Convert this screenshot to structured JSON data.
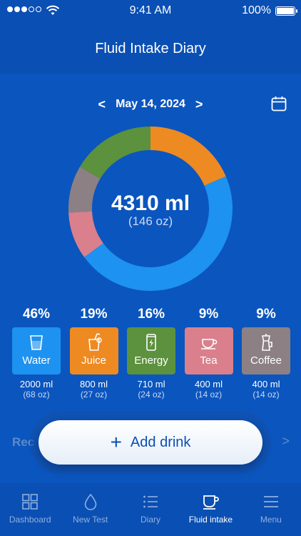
{
  "status": {
    "time": "9:41 AM",
    "battery": "100%"
  },
  "header": {
    "title": "Fluid Intake Diary"
  },
  "date": {
    "label": "May 14, 2024",
    "prev": "<",
    "next": ">"
  },
  "summary": {
    "total": "4310 ml",
    "total_oz": "(146 oz)"
  },
  "chart_data": {
    "type": "pie",
    "title": "",
    "labels": [
      "Water",
      "Juice",
      "Energy",
      "Tea",
      "Coffee"
    ],
    "values": [
      2000,
      800,
      710,
      400,
      400
    ],
    "colors": [
      "#1D92F0",
      "#EE8A22",
      "#5C913D",
      "#D9808C",
      "#8C8084"
    ]
  },
  "categories": [
    {
      "pct": "46%",
      "label": "Water",
      "ml": "2000 ml",
      "oz": "(68 oz)",
      "color": "#1D92F0",
      "icon": "glass-icon"
    },
    {
      "pct": "19%",
      "label": "Juice",
      "ml": "800 ml",
      "oz": "(27 oz)",
      "color": "#EE8A22",
      "icon": "juice-icon"
    },
    {
      "pct": "16%",
      "label": "Energy",
      "ml": "710 ml",
      "oz": "(24 oz)",
      "color": "#5C913D",
      "icon": "energy-can-icon"
    },
    {
      "pct": "9%",
      "label": "Tea",
      "ml": "400 ml",
      "oz": "(14 oz)",
      "color": "#D9808C",
      "icon": "teacup-icon"
    },
    {
      "pct": "9%",
      "label": "Coffee",
      "ml": "400 ml",
      "oz": "(14 oz)",
      "color": "#8C8084",
      "icon": "coffee-pot-icon"
    }
  ],
  "recent": {
    "label": "Rec",
    "arrow": ">"
  },
  "add_button": {
    "plus": "+",
    "label": "Add drink"
  },
  "tabs": [
    {
      "label": "Dashboard",
      "icon": "grid-icon"
    },
    {
      "label": "New Test",
      "icon": "drop-icon"
    },
    {
      "label": "Diary",
      "icon": "list-icon"
    },
    {
      "label": "Fluid intake",
      "icon": "cup-icon",
      "active": true
    },
    {
      "label": "Menu",
      "icon": "menu-icon"
    }
  ]
}
